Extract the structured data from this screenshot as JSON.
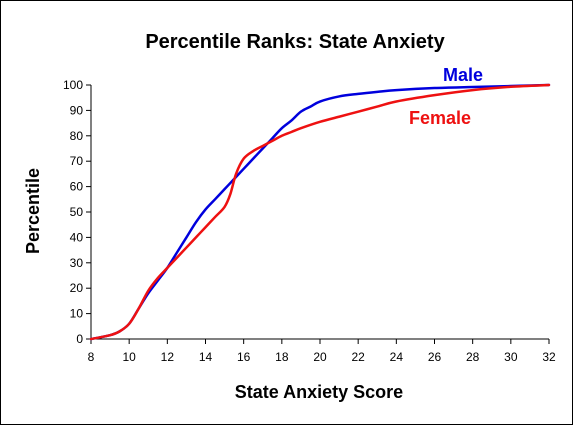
{
  "colors": {
    "male": "#0000dd",
    "female": "#ee1111",
    "axis": "#000000"
  },
  "chart_data": {
    "type": "line",
    "title": "Percentile Ranks: State Anxiety",
    "xlabel": "State Anxiety Score",
    "ylabel": "Percentile",
    "xlim": [
      8,
      32
    ],
    "ylim": [
      0,
      100
    ],
    "x_ticks": [
      8,
      10,
      12,
      14,
      16,
      18,
      20,
      22,
      24,
      26,
      28,
      30,
      32
    ],
    "y_ticks": [
      0,
      10,
      20,
      30,
      40,
      50,
      60,
      70,
      80,
      90,
      100
    ],
    "grid": false,
    "legend": "inline labels on curves",
    "series": [
      {
        "name": "Male",
        "x": [
          8,
          9,
          9.5,
          10,
          10.5,
          11,
          11.5,
          12,
          12.5,
          13,
          13.5,
          14,
          14.5,
          15,
          15.5,
          16,
          16.5,
          17,
          17.5,
          18,
          18.5,
          19,
          19.5,
          20,
          21,
          22,
          23,
          24,
          26,
          28,
          30,
          32
        ],
        "y": [
          0,
          1.5,
          3,
          6,
          12,
          18,
          23,
          28,
          34,
          40,
          46,
          51,
          55,
          59,
          63,
          67,
          71,
          75,
          79,
          83,
          86,
          89.5,
          91.5,
          93.5,
          95.5,
          96.5,
          97.3,
          98,
          98.8,
          99.2,
          99.6,
          100
        ]
      },
      {
        "name": "Female",
        "x": [
          8,
          9,
          9.5,
          10,
          10.5,
          11,
          11.5,
          12,
          12.5,
          13,
          13.5,
          14,
          14.5,
          15,
          15.3,
          15.6,
          16,
          16.5,
          17,
          17.5,
          18,
          18.5,
          19,
          20,
          21,
          22,
          23,
          24,
          26,
          28,
          30,
          32
        ],
        "y": [
          0,
          1.5,
          3,
          6,
          12,
          19,
          24,
          28,
          32,
          36,
          40,
          44,
          48,
          52,
          57,
          65,
          71,
          74,
          76,
          78,
          80,
          81.5,
          83,
          85.5,
          87.5,
          89.5,
          91.5,
          93.5,
          96,
          98,
          99.3,
          100
        ]
      }
    ]
  }
}
